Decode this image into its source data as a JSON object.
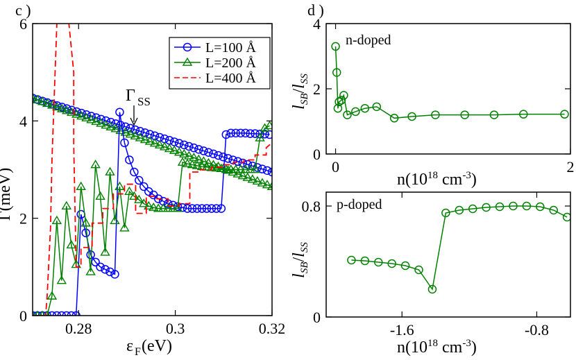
{
  "chart_data": [
    {
      "type": "line",
      "panel_label": "c )",
      "xlabel_main": "ε",
      "xlabel_sub": "F",
      "xlabel_tail": "(eV)",
      "ylabel": "Γ(meV)",
      "xlim": [
        0.2705,
        0.32
      ],
      "ylim": [
        0,
        6
      ],
      "xticks": [
        0.28,
        0.3,
        0.32
      ],
      "xtick_labels": [
        "0.28",
        "0.3",
        "0.32"
      ],
      "yticks": [
        0,
        2,
        4,
        6
      ],
      "ytick_labels": [
        "0",
        "2",
        "4",
        "6"
      ],
      "annotation": {
        "text": "Γ",
        "sub": "SS",
        "x": 0.2933,
        "y": 3.88
      },
      "legend": [
        "L=100 Å",
        "L=200 Å",
        "L=400 Å"
      ],
      "reference_line": {
        "name": "Γ_SS",
        "x": [
          0.2705,
          0.32
        ],
        "y": [
          4.47,
          2.95
        ]
      },
      "series": [
        {
          "name": "L=100 Å",
          "color": "#0000ff",
          "marker": "circle",
          "x": [
            0.2705,
            0.2715,
            0.2725,
            0.2735,
            0.2745,
            0.2755,
            0.2765,
            0.2775,
            0.2785,
            0.2795,
            0.2805,
            0.2815,
            0.2825,
            0.2835,
            0.2845,
            0.2855,
            0.2865,
            0.2875,
            0.2885,
            0.2895,
            0.2905,
            0.2915,
            0.2925,
            0.2935,
            0.2945,
            0.2955,
            0.2965,
            0.2975,
            0.2985,
            0.2995,
            0.3005,
            0.3015,
            0.3025,
            0.3035,
            0.3045,
            0.3055,
            0.3065,
            0.3075,
            0.3085,
            0.3095,
            0.3105,
            0.3115,
            0.3125,
            0.3135,
            0.3145,
            0.3155,
            0.3165,
            0.3175,
            0.3185,
            0.3195
          ],
          "y": [
            0,
            0,
            0,
            0,
            0,
            0,
            0,
            0,
            0,
            0,
            2.08,
            1.7,
            1.25,
            1.1,
            1.0,
            0.95,
            0.9,
            0.85,
            4.18,
            3.55,
            3.2,
            2.95,
            2.78,
            2.65,
            2.55,
            2.48,
            2.4,
            2.35,
            2.3,
            2.27,
            2.24,
            2.22,
            2.2,
            2.2,
            2.2,
            2.2,
            2.2,
            2.2,
            2.2,
            2.2,
            3.72,
            3.75,
            3.75,
            3.75,
            3.75,
            3.74,
            3.74,
            3.73,
            3.73,
            3.72
          ]
        },
        {
          "name": "L=200 Å",
          "color": "#008000",
          "marker": "triangle",
          "x": [
            0.2705,
            0.2715,
            0.2725,
            0.2735,
            0.2745,
            0.2755,
            0.2765,
            0.2775,
            0.2785,
            0.2795,
            0.2805,
            0.2815,
            0.2825,
            0.2835,
            0.2845,
            0.2855,
            0.2865,
            0.2875,
            0.2885,
            0.2895,
            0.2905,
            0.2915,
            0.2925,
            0.2935,
            0.2945,
            0.2955,
            0.2965,
            0.2975,
            0.2985,
            0.2995,
            0.3005,
            0.3015,
            0.3025,
            0.3035,
            0.3045,
            0.3055,
            0.3065,
            0.3075,
            0.3085,
            0.3095,
            0.3105,
            0.3115,
            0.3125,
            0.3135,
            0.3145,
            0.3155,
            0.3165,
            0.3175,
            0.3185,
            0.3195
          ],
          "y": [
            0,
            0,
            0,
            0,
            0.4,
            1.95,
            0.72,
            2.25,
            1.45,
            1.05,
            2.65,
            1.9,
            0.9,
            3.1,
            2.45,
            1.3,
            2.95,
            1.95,
            2.65,
            1.8,
            2.55,
            2.45,
            2.38,
            2.3,
            2.25,
            2.22,
            2.2,
            2.2,
            2.2,
            2.2,
            2.2,
            3.15,
            3.12,
            3.1,
            3.08,
            3.06,
            3.05,
            3.04,
            3.03,
            3.02,
            3.0,
            3.0,
            3.0,
            3.0,
            3.0,
            3.0,
            3.0,
            3.65,
            3.85,
            3.9
          ]
        },
        {
          "name": "L=400 Å",
          "color": "#ff0000",
          "marker": "dashed",
          "x": [
            0.2705,
            0.2732,
            0.2735,
            0.2742,
            0.2745,
            0.2758,
            0.2765,
            0.2772,
            0.2775,
            0.279,
            0.279,
            0.2792,
            0.2795,
            0.2805,
            0.2805,
            0.2828,
            0.2828,
            0.285,
            0.285,
            0.2872,
            0.2872,
            0.2895,
            0.2895,
            0.2918,
            0.2918,
            0.294,
            0.294,
            0.2962,
            0.2962,
            0.2985,
            0.2985,
            0.3008,
            0.3008,
            0.303,
            0.303,
            0.3052,
            0.3052,
            0.3075,
            0.3075,
            0.3098,
            0.3098,
            0.312,
            0.312,
            0.3142,
            0.3142,
            0.3165,
            0.3165,
            0.3188,
            0.3188,
            0.32
          ],
          "y": [
            0,
            0,
            0.4,
            1.8,
            3.2,
            6.8,
            6.8,
            6.8,
            6.5,
            5.0,
            3.5,
            2.5,
            1.0,
            1.0,
            1.4,
            1.4,
            1.9,
            1.9,
            2.2,
            2.2,
            2.5,
            2.5,
            2.7,
            2.7,
            2.1,
            2.1,
            2.45,
            2.45,
            2.4,
            2.4,
            2.25,
            2.25,
            2.3,
            2.3,
            2.95,
            2.95,
            3.0,
            3.0,
            3.05,
            3.05,
            3.1,
            3.1,
            3.15,
            3.15,
            3.2,
            3.2,
            3.3,
            3.3,
            3.45,
            3.55
          ]
        }
      ]
    },
    {
      "type": "line",
      "panel_label": "d )",
      "annotation": "n-doped",
      "xlabel_main": "n(10",
      "xlabel_sup1": "18",
      "xlabel_mid": " cm",
      "xlabel_sup2": "-3",
      "xlabel_tail": ")",
      "ylabel_l1": "l",
      "ylabel_sub1": "SB",
      "ylabel_slash": "/",
      "ylabel_l2": "l",
      "ylabel_sub2": "SS",
      "xlim": [
        -0.08,
        2.0
      ],
      "ylim": [
        0,
        4
      ],
      "xticks": [
        0,
        2
      ],
      "xtick_labels": [
        "0",
        "2"
      ],
      "yticks": [
        0,
        2,
        4
      ],
      "ytick_labels": [
        "0",
        "2",
        "4"
      ],
      "series": [
        {
          "name": "n-doped",
          "color": "#008000",
          "marker": "circle",
          "x": [
            0.0,
            0.01,
            0.02,
            0.03,
            0.05,
            0.07,
            0.1,
            0.17,
            0.25,
            0.35,
            0.5,
            0.65,
            0.85,
            1.1,
            1.35,
            1.6,
            1.95
          ],
          "y": [
            3.3,
            2.5,
            1.4,
            1.6,
            1.65,
            1.8,
            1.2,
            1.3,
            1.4,
            1.45,
            1.1,
            1.15,
            1.2,
            1.2,
            1.2,
            1.22,
            1.22
          ]
        }
      ]
    },
    {
      "type": "line",
      "panel_label": "",
      "annotation": "p-doped",
      "xlabel_main": "n(10",
      "xlabel_sup1": "18",
      "xlabel_mid": " cm",
      "xlabel_sup2": "-3",
      "xlabel_tail": ")",
      "ylabel_l1": "l",
      "ylabel_sub1": "SB",
      "ylabel_slash": "/",
      "ylabel_l2": "l",
      "ylabel_sub2": "SS",
      "xlim": [
        -2.05,
        -0.6
      ],
      "ylim": [
        0,
        0.9
      ],
      "xticks": [
        -1.6,
        -0.8
      ],
      "xtick_labels": [
        "-1.6",
        "-0.8"
      ],
      "yticks": [
        0,
        0.8
      ],
      "ytick_labels": [
        "0",
        "0.8"
      ],
      "series": [
        {
          "name": "p-doped",
          "color": "#008000",
          "marker": "circle",
          "x": [
            -1.9,
            -1.82,
            -1.74,
            -1.66,
            -1.58,
            -1.5,
            -1.42,
            -1.34,
            -1.26,
            -1.18,
            -1.1,
            -1.02,
            -0.94,
            -0.86,
            -0.78,
            -0.7,
            -0.62
          ],
          "y": [
            0.41,
            0.405,
            0.395,
            0.385,
            0.37,
            0.34,
            0.2,
            0.75,
            0.77,
            0.78,
            0.79,
            0.795,
            0.8,
            0.8,
            0.795,
            0.77,
            0.72
          ]
        }
      ]
    }
  ]
}
